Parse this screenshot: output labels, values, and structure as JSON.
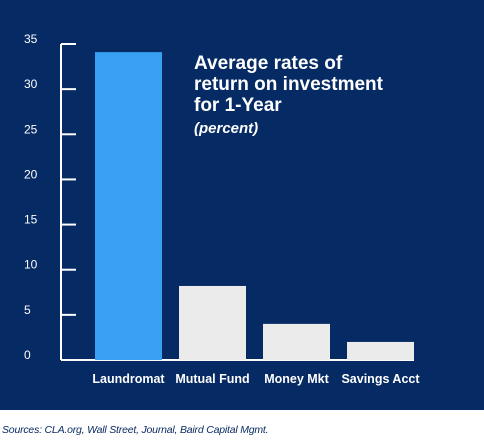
{
  "chart_data": {
    "type": "bar",
    "title_lines": [
      "Average rates of",
      "return on investment",
      "for 1-Year"
    ],
    "subtitle": "(percent)",
    "categories": [
      "Laundromat",
      "Mutual Fund",
      "Money Mkt",
      "Savings Acct"
    ],
    "values": [
      34.1,
      8.2,
      4.0,
      2.0
    ],
    "colors": [
      "#39a1f4",
      "#ebebeb",
      "#ebebeb",
      "#ebebeb"
    ],
    "ylim": [
      0,
      35
    ],
    "yticks": [
      0,
      5,
      10,
      15,
      20,
      25,
      30,
      35
    ],
    "xlabel": "",
    "ylabel": "",
    "grid": false,
    "background": "#062a63"
  },
  "source": "Sources: CLA.org, Wall Street, Journal, Baird Capital Mgmt."
}
